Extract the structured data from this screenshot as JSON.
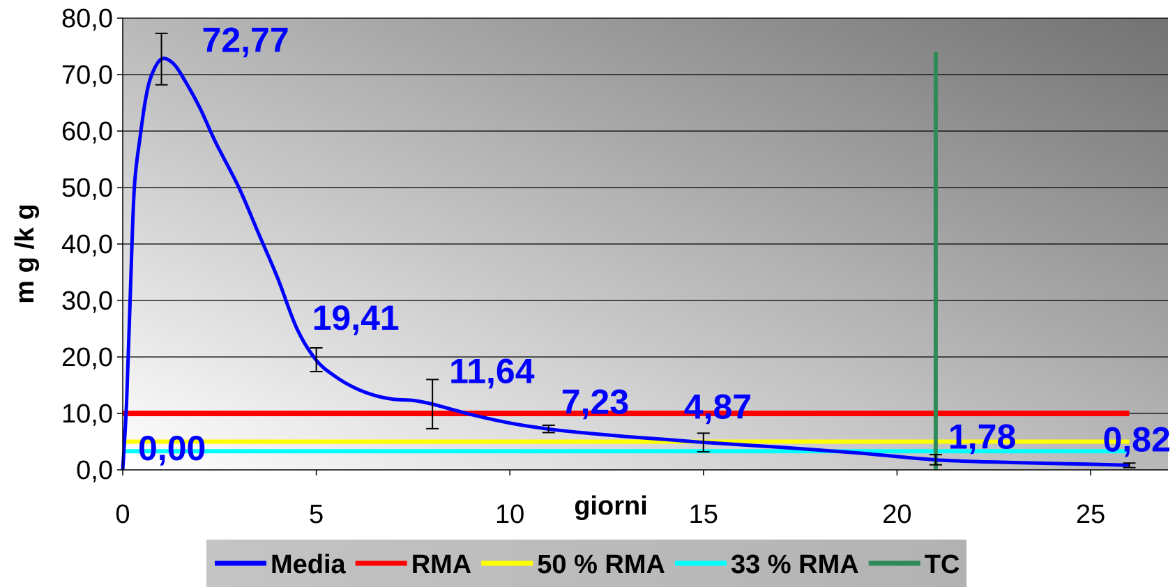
{
  "chart_data": {
    "type": "line",
    "xlabel": "giorni",
    "ylabel": "m g /k g",
    "xlim": [
      0,
      27
    ],
    "ylim": [
      0,
      80
    ],
    "x_ticks": [
      "0",
      "5",
      "10",
      "15",
      "20",
      "25"
    ],
    "y_ticks": [
      "0,0",
      "10,0",
      "20,0",
      "30,0",
      "40,0",
      "50,0",
      "60,0",
      "70,0",
      "80,0"
    ],
    "grid": "horizontal",
    "background": "gradient light-to-dark gray",
    "legend_position": "bottom",
    "series": [
      {
        "name": "Media",
        "color": "#0000ff",
        "kind": "curve",
        "points": [
          [
            0,
            0
          ],
          [
            0.1,
            12
          ],
          [
            0.2,
            32
          ],
          [
            0.3,
            50
          ],
          [
            0.45,
            59
          ],
          [
            0.6,
            66
          ],
          [
            0.75,
            70
          ],
          [
            1,
            72.77
          ],
          [
            1.3,
            72
          ],
          [
            1.6,
            69
          ],
          [
            2,
            64
          ],
          [
            2.4,
            58
          ],
          [
            3,
            50
          ],
          [
            3.5,
            42
          ],
          [
            4,
            34
          ],
          [
            4.5,
            25
          ],
          [
            5,
            19.41
          ],
          [
            5.5,
            16.5
          ],
          [
            6,
            14.5
          ],
          [
            6.5,
            13.2
          ],
          [
            7,
            12.5
          ],
          [
            7.5,
            12.3
          ],
          [
            8,
            11.64
          ],
          [
            9,
            9.8
          ],
          [
            10,
            8.3
          ],
          [
            11,
            7.23
          ],
          [
            12,
            6.5
          ],
          [
            13,
            5.9
          ],
          [
            14,
            5.4
          ],
          [
            15,
            4.87
          ],
          [
            17,
            4.0
          ],
          [
            19,
            3.0
          ],
          [
            21,
            1.78
          ],
          [
            23,
            1.3
          ],
          [
            25,
            1.0
          ],
          [
            26,
            0.82
          ]
        ]
      },
      {
        "name": "RMA",
        "color": "#ff0000",
        "kind": "hline",
        "y": 10,
        "x_range": [
          0,
          26
        ]
      },
      {
        "name": "50 % RMA",
        "color": "#ffff00",
        "kind": "hline",
        "y": 5,
        "x_range": [
          0,
          26
        ]
      },
      {
        "name": "33 % RMA",
        "color": "#00ffff",
        "kind": "hline",
        "y": 3.3,
        "x_range": [
          0,
          26
        ]
      },
      {
        "name": "TC",
        "color": "#2e8b57",
        "kind": "vline",
        "x": 21,
        "y_range": [
          0,
          74
        ]
      }
    ],
    "error_bars": [
      {
        "x": 1,
        "low": 68.2,
        "high": 77.3
      },
      {
        "x": 5,
        "low": 17.4,
        "high": 21.6
      },
      {
        "x": 8,
        "low": 7.3,
        "high": 16.0
      },
      {
        "x": 11,
        "low": 6.6,
        "high": 7.9
      },
      {
        "x": 15,
        "low": 3.2,
        "high": 6.5
      },
      {
        "x": 21,
        "low": 0.9,
        "high": 2.7
      },
      {
        "x": 26,
        "low": 0.4,
        "high": 1.2
      }
    ],
    "data_labels": [
      {
        "text": "0,00",
        "x": 0,
        "y": 0
      },
      {
        "text": "72,77",
        "x": 1,
        "y": 72.77
      },
      {
        "text": "19,41",
        "x": 5,
        "y": 19.41
      },
      {
        "text": "11,64",
        "x": 8,
        "y": 11.64
      },
      {
        "text": "7,23",
        "x": 11,
        "y": 7.23
      },
      {
        "text": "4,87",
        "x": 15,
        "y": 4.87
      },
      {
        "text": "1,78",
        "x": 21,
        "y": 1.78
      },
      {
        "text": "0,82",
        "x": 26,
        "y": 0.82
      }
    ]
  }
}
